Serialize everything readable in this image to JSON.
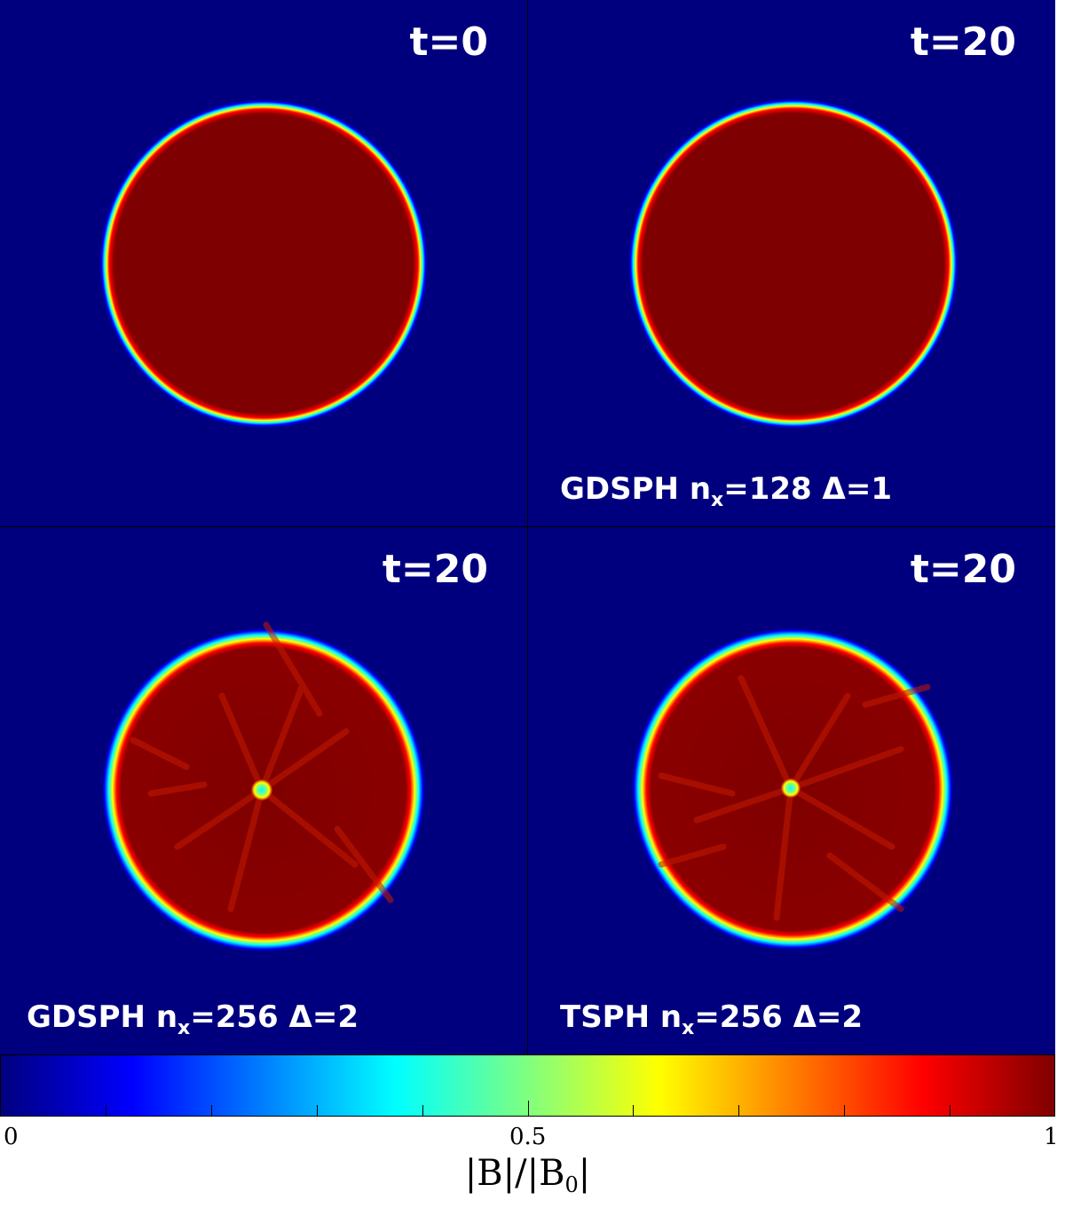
{
  "panels": [
    {
      "time_label": "t=0",
      "sim_label": ""
    },
    {
      "time_label": "t=20",
      "sim_label": "GDSPH n",
      "sim_sub": "x",
      "sim_rest": "=128 Δ=1"
    },
    {
      "time_label": "t=20",
      "sim_label": "GDSPH n",
      "sim_sub": "x",
      "sim_rest": "=256 Δ=2"
    },
    {
      "time_label": "t=20",
      "sim_label": "TSPH n",
      "sim_sub": "x",
      "sim_rest": "=256 Δ=2"
    }
  ],
  "colorbar": {
    "tick_labels": [
      "0",
      "0.5",
      "1"
    ],
    "label_main": "|B|/|B",
    "label_sub": "0",
    "label_end": "|",
    "range": [
      0,
      1
    ],
    "colormap": "jet",
    "colors": [
      "#00007f",
      "#0000ff",
      "#00ffff",
      "#ffff00",
      "#ff0000",
      "#7f0000"
    ]
  }
}
